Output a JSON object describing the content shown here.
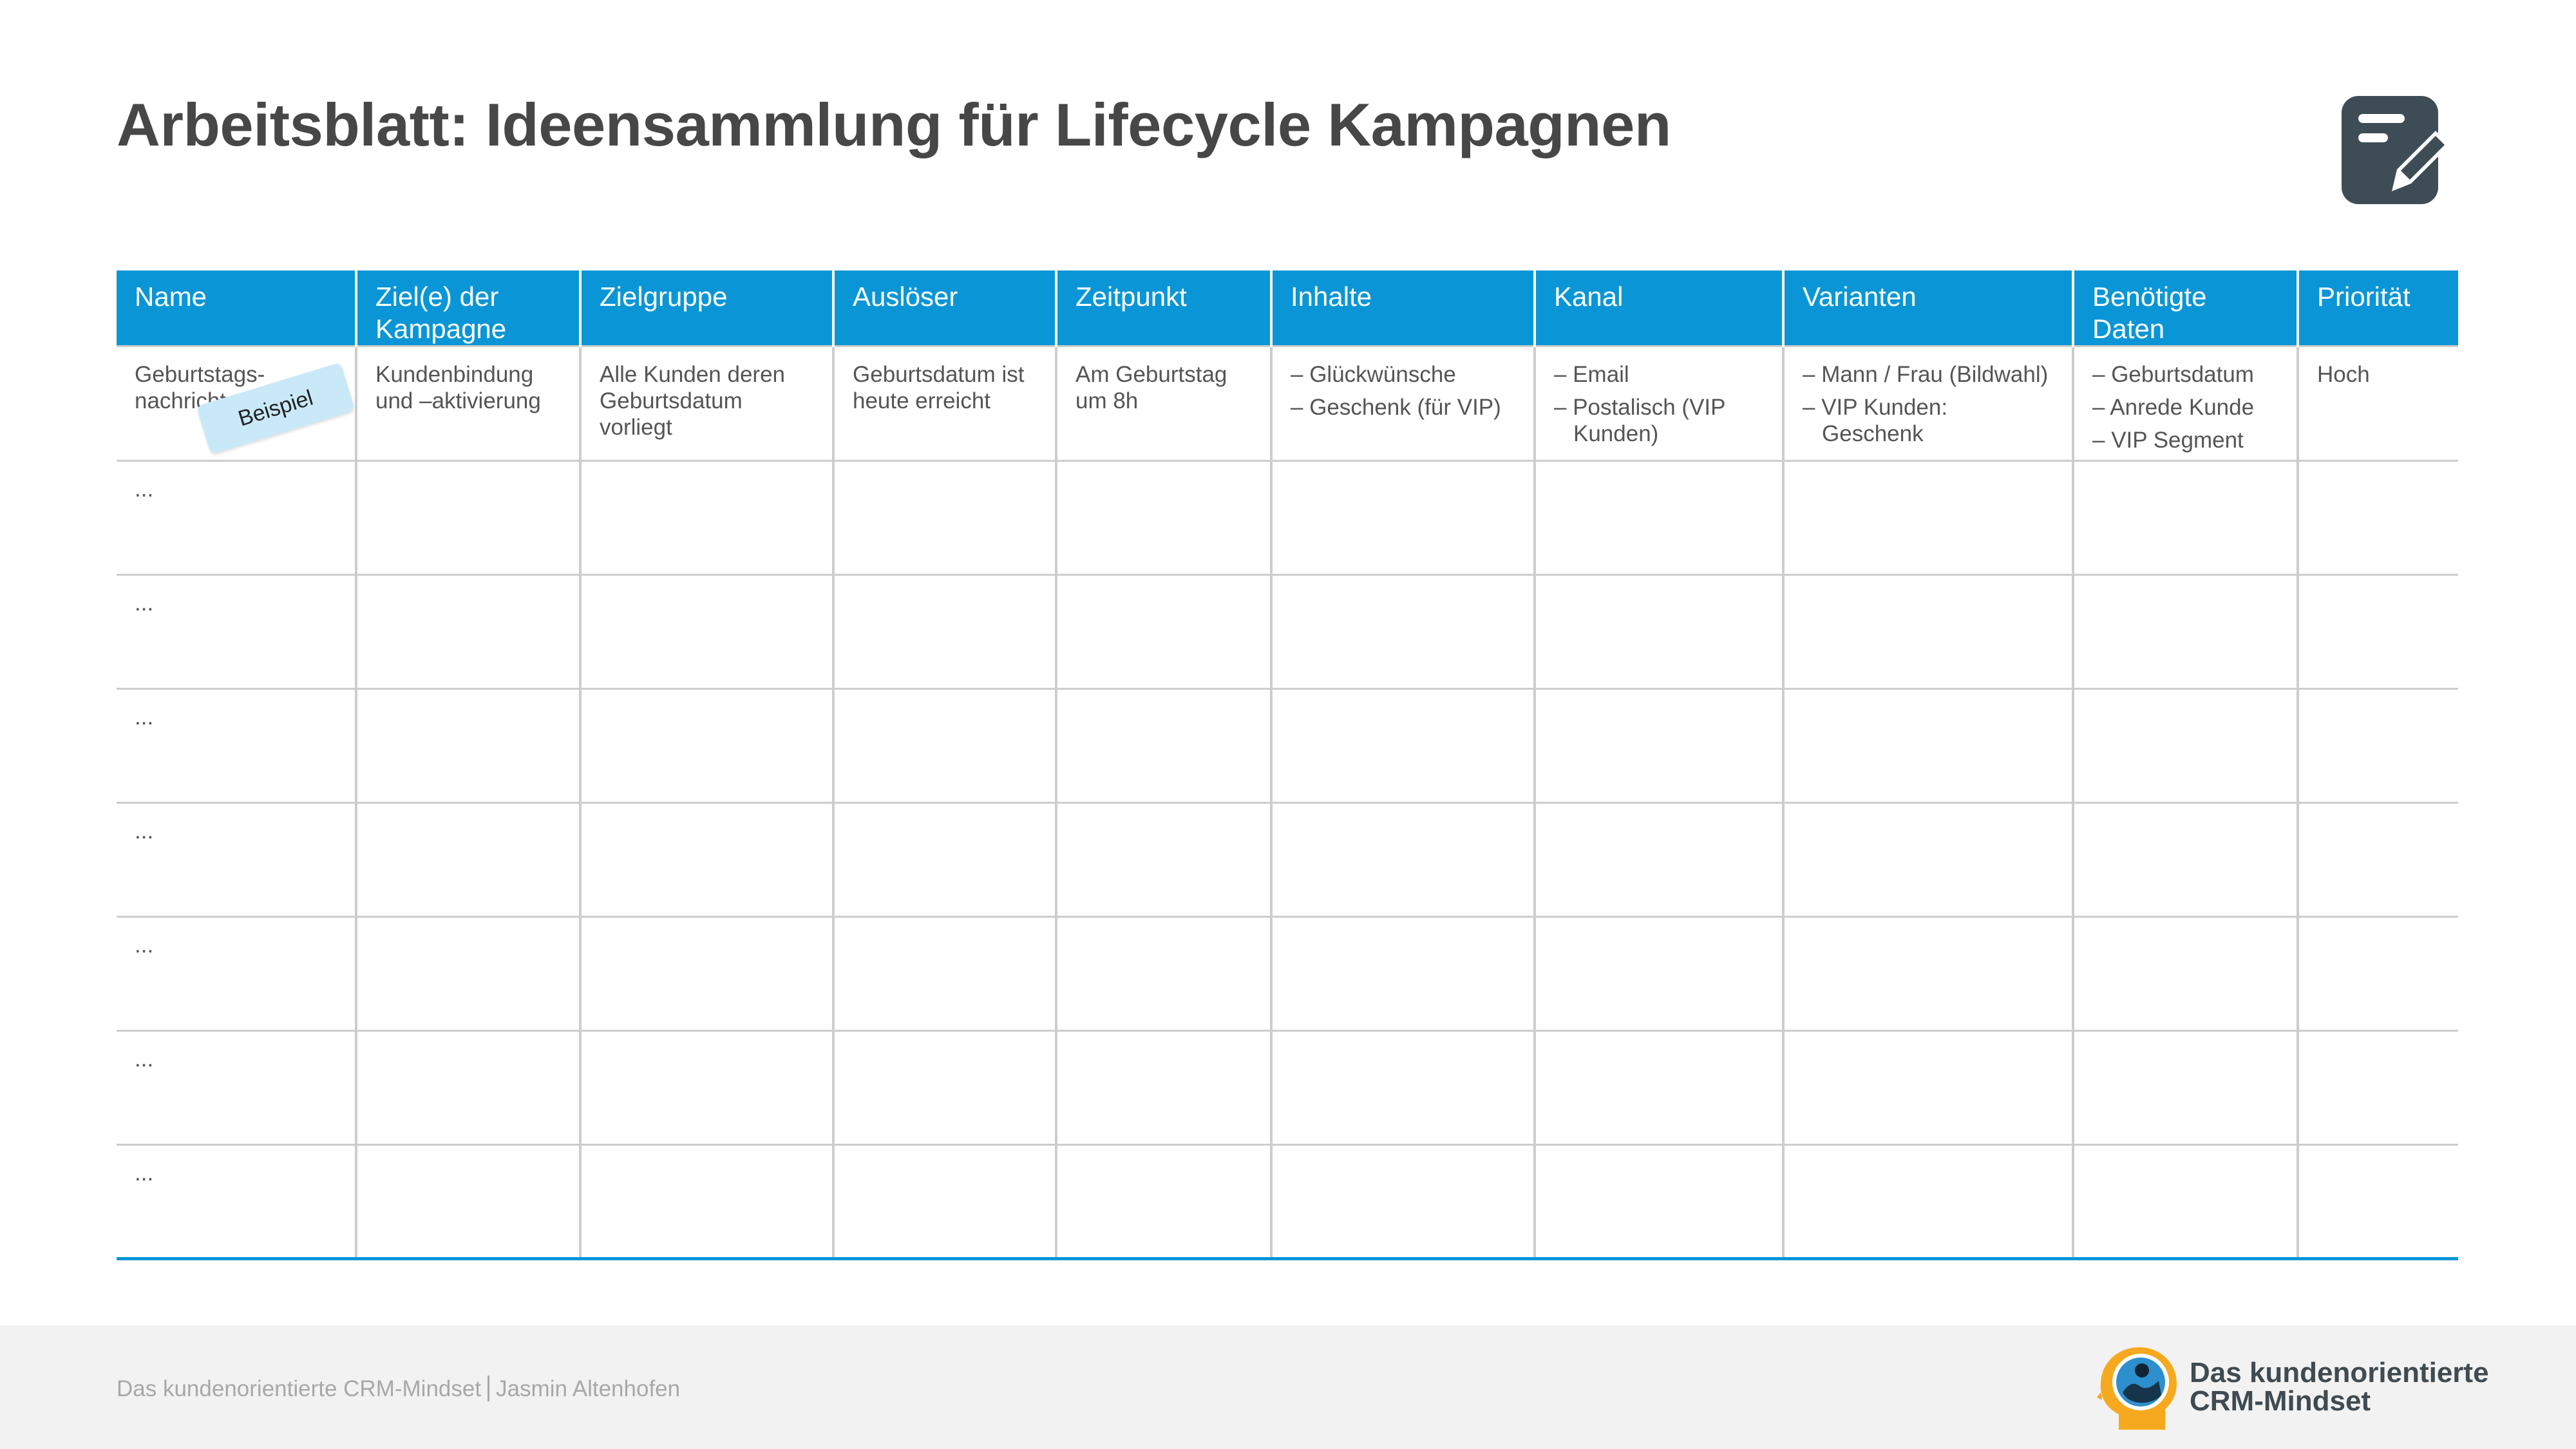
{
  "page": {
    "title": "Arbeitsblatt: Ideensammlung für Lifecycle Kampagnen",
    "icon": "edit-document-icon"
  },
  "colors": {
    "header_bg": "#0a96d6",
    "header_text": "#ffffff",
    "grid": "#cdcdcd",
    "example_tag_bg": "#c9e9f8",
    "footer_bg": "#f2f2f2",
    "icon": "#3e4c55",
    "logo_ring": "#f6a91f"
  },
  "table": {
    "headers": [
      "Name",
      "Ziel(e) der Kampagne",
      "Zielgruppe",
      "Auslöser",
      "Zeitpunkt",
      "Inhalte",
      "Kanal",
      "Varianten",
      "Benötigte Daten",
      "Priorität"
    ],
    "example_tag": "Beispiel",
    "example_row": {
      "name": "Geburtstags-\nnachricht",
      "ziel": "Kundenbindung\nund –aktivierung",
      "zielgruppe": "Alle Kunden deren\nGeburtsdatum\nvorliegt",
      "ausloeser": "Geburtsdatum ist\nheute erreicht",
      "zeitpunkt": "Am Geburtstag\num 8h",
      "inhalte": [
        "– Glückwünsche",
        "– Geschenk (für VIP)"
      ],
      "kanal": [
        "– Email",
        "– Postalisch (VIP Kunden)"
      ],
      "varianten": [
        "– Mann / Frau (Bildwahl)",
        "– VIP Kunden: Geschenk"
      ],
      "daten": [
        "– Geburtsdatum",
        "– Anrede Kunde",
        "– VIP Segment"
      ],
      "prioritaet": "Hoch"
    },
    "placeholder": "..."
  },
  "footer": {
    "book": "Das kundenorientierte CRM-Mindset",
    "author": "Jasmin Altenhofen",
    "brand": "Das kundenorientierte\nCRM-Mindset"
  }
}
